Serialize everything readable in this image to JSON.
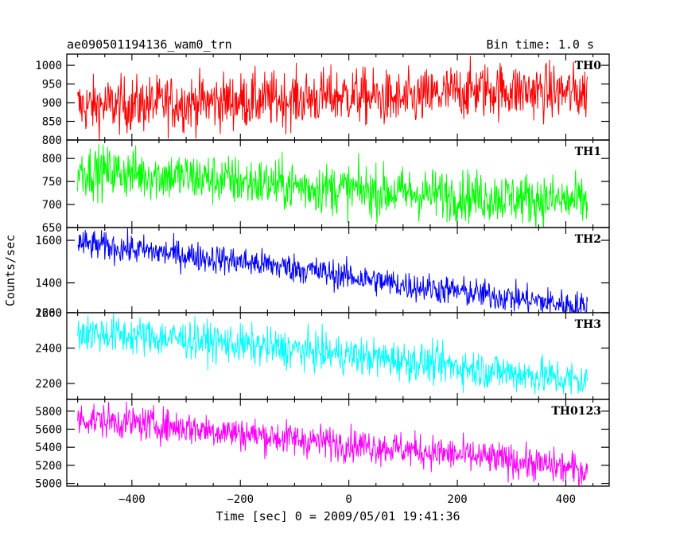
{
  "header": {
    "title": "ae090501194136_wam0_trn",
    "bin_time": "Bin time: 1.0 s"
  },
  "chart_data": {
    "type": "line",
    "title": "ae090501194136_wam0_trn",
    "subtitle": "Bin time: 1.0 s",
    "xlabel": "Time [sec] 0 = 2009/05/01 19:41:36",
    "ylabel": "Counts/sec",
    "xlim": [
      -520,
      480
    ],
    "x_range": [
      -500,
      440
    ],
    "x_ticks": [
      -400,
      -200,
      0,
      200,
      400
    ],
    "x_tick_labels": [
      "−400",
      "−200",
      "0",
      "200",
      "400"
    ],
    "grid": false,
    "panels": [
      {
        "name": "TH0",
        "color": "#ff0000",
        "ylim": [
          800,
          1030
        ],
        "y_ticks": [
          800,
          850,
          900,
          950,
          1000
        ],
        "y_tick_labels": [
          "800",
          "850",
          "900",
          "950",
          "1000"
        ],
        "trend": [
          [
            -500,
            890
          ],
          [
            -300,
            900
          ],
          [
            -100,
            910
          ],
          [
            0,
            920
          ],
          [
            100,
            905
          ],
          [
            180,
            925
          ],
          [
            250,
            935
          ],
          [
            350,
            930
          ],
          [
            440,
            925
          ]
        ],
        "noise": 38
      },
      {
        "name": "TH1",
        "color": "#00ff00",
        "ylim": [
          650,
          840
        ],
        "y_ticks": [
          650,
          700,
          750,
          800
        ],
        "y_tick_labels": [
          "650",
          "700",
          "750",
          "800"
        ],
        "trend": [
          [
            -500,
            775
          ],
          [
            -300,
            760
          ],
          [
            -100,
            740
          ],
          [
            100,
            725
          ],
          [
            300,
            715
          ],
          [
            440,
            705
          ]
        ],
        "noise": 28
      },
      {
        "name": "TH2",
        "color": "#0000ff",
        "ylim": [
          1260,
          1660
        ],
        "y_ticks": [
          1260,
          1400,
          1600
        ],
        "y_tick_labels": [
          "1260",
          "1400",
          "1600"
        ],
        "trend": [
          [
            -500,
            1585
          ],
          [
            -300,
            1530
          ],
          [
            -100,
            1470
          ],
          [
            100,
            1390
          ],
          [
            300,
            1330
          ],
          [
            440,
            1285
          ]
        ],
        "noise": 35
      },
      {
        "name": "TH3",
        "color": "#00ffff",
        "ylim": [
          2110,
          2600
        ],
        "y_ticks": [
          2200,
          2400,
          2600
        ],
        "y_tick_labels": [
          "2200",
          "2400",
          "2600"
        ],
        "trend": [
          [
            -500,
            2490
          ],
          [
            -300,
            2450
          ],
          [
            -100,
            2390
          ],
          [
            100,
            2330
          ],
          [
            300,
            2260
          ],
          [
            440,
            2210
          ]
        ],
        "noise": 55
      },
      {
        "name": "TH0123",
        "color": "#ff00ff",
        "ylim": [
          4970,
          5930
        ],
        "y_ticks": [
          5000,
          5200,
          5400,
          5600,
          5800
        ],
        "y_tick_labels": [
          "5000",
          "5200",
          "5400",
          "5600",
          "5800"
        ],
        "trend": [
          [
            -500,
            5720
          ],
          [
            -300,
            5620
          ],
          [
            -100,
            5490
          ],
          [
            100,
            5380
          ],
          [
            300,
            5250
          ],
          [
            440,
            5140
          ]
        ],
        "noise": 95
      }
    ]
  }
}
